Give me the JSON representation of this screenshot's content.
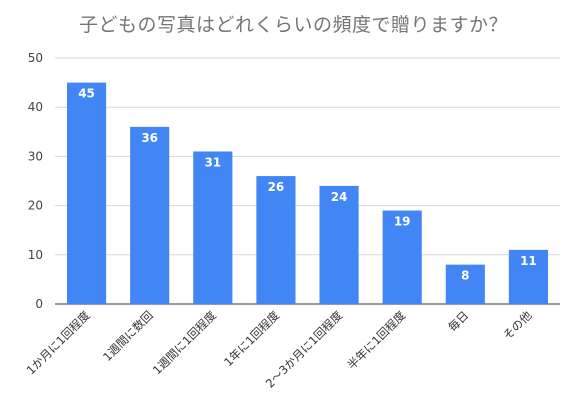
{
  "chart_data": {
    "type": "bar",
    "title": "子どもの写真はどれくらいの頻度で贈りますか？",
    "categories": [
      "1か月に1回程度",
      "1週間に数回",
      "1週間に1回程度",
      "1年に1回程度",
      "2～3か月に1回程度",
      "半年に1回程度",
      "毎日",
      "その他"
    ],
    "values": [
      45,
      36,
      31,
      26,
      24,
      19,
      8,
      11
    ],
    "yticks": [
      0,
      10,
      20,
      30,
      40,
      50
    ],
    "ylim": [
      0,
      50
    ],
    "grid": true,
    "bar_color": "#4285f4",
    "xlabel": "",
    "ylabel": ""
  }
}
